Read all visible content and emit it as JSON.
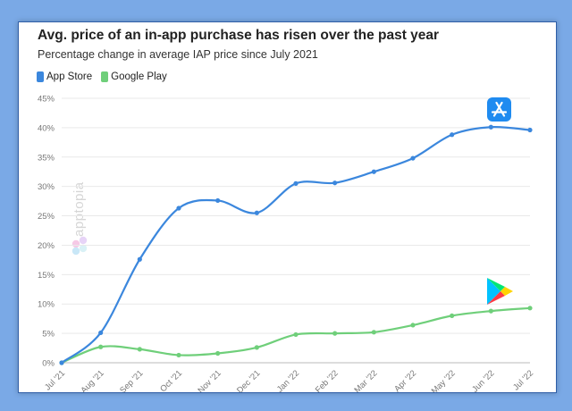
{
  "header": {
    "title": "Avg. price of an in-app purchase has risen over the past year",
    "subtitle": "Percentage change in average IAP price since July 2021"
  },
  "legend": [
    {
      "label": "App Store",
      "color": "#3b87dd"
    },
    {
      "label": "Google Play",
      "color": "#6fcf7a"
    }
  ],
  "watermark": {
    "text": "apptopia"
  },
  "icons": {
    "app_store": "app-store-icon",
    "google_play": "google-play-icon"
  },
  "chart_data": {
    "type": "line",
    "title": "Avg. price of an in-app purchase has risen over the past year",
    "subtitle": "Percentage change in average IAP price since July 2021",
    "x": [
      "Jul '21",
      "Aug '21",
      "Sep '21",
      "Oct '21",
      "Nov '21",
      "Dec '21",
      "Jan '22",
      "Feb '22",
      "Mar '22",
      "Apr '22",
      "May '22",
      "Jun '22",
      "Jul '22"
    ],
    "y_ticks": [
      "0%",
      "5%",
      "10%",
      "15%",
      "20%",
      "25%",
      "30%",
      "35%",
      "40%",
      "45%"
    ],
    "ylim": [
      0,
      45
    ],
    "y_unit": "%",
    "grid": true,
    "legend_position": "top-left",
    "series": [
      {
        "name": "App Store",
        "color": "#3b87dd",
        "values": [
          0,
          5.1,
          17.6,
          26.3,
          27.6,
          25.5,
          30.5,
          30.6,
          32.5,
          34.8,
          38.8,
          40.1,
          39.6
        ]
      },
      {
        "name": "Google Play",
        "color": "#6fcf7a",
        "values": [
          0,
          2.7,
          2.3,
          1.3,
          1.6,
          2.6,
          4.8,
          5.0,
          5.2,
          6.4,
          8.0,
          8.8,
          9.3
        ]
      }
    ]
  }
}
